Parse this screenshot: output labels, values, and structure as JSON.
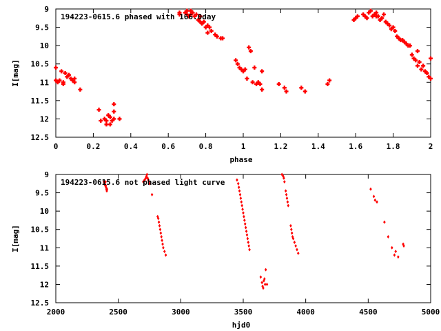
{
  "chart_data": [
    {
      "type": "scatter",
      "title": "194223-0615.6 phased with 166.0day",
      "xlabel": "phase",
      "ylabel": "I[mag]",
      "xlim": [
        0,
        2
      ],
      "ylim": [
        12.5,
        9
      ],
      "y_inverted": true,
      "grid": false,
      "x_ticks": [
        "0",
        "0.2",
        "0.4",
        "0.6",
        "0.8",
        "1",
        "1.2",
        "1.4",
        "1.6",
        "1.8",
        "2"
      ],
      "y_ticks": [
        "9",
        "9.5",
        "10",
        "10.5",
        "11",
        "11.5",
        "12",
        "12.5"
      ],
      "marker_color": "#ff0000",
      "series": [
        {
          "points": [
            [
              0.0,
              10.6
            ],
            [
              0.0,
              10.95
            ],
            [
              0.01,
              11.0
            ],
            [
              0.02,
              10.95
            ],
            [
              0.03,
              10.7
            ],
            [
              0.04,
              11.0
            ],
            [
              0.04,
              11.05
            ],
            [
              0.05,
              10.75
            ],
            [
              0.06,
              10.85
            ],
            [
              0.07,
              10.8
            ],
            [
              0.08,
              10.9
            ],
            [
              0.09,
              10.95
            ],
            [
              0.1,
              11.0
            ],
            [
              0.1,
              10.9
            ],
            [
              0.13,
              11.2
            ],
            [
              0.23,
              11.75
            ],
            [
              0.24,
              12.05
            ],
            [
              0.26,
              12.0
            ],
            [
              0.27,
              12.05
            ],
            [
              0.27,
              12.15
            ],
            [
              0.28,
              11.9
            ],
            [
              0.29,
              12.15
            ],
            [
              0.29,
              11.95
            ],
            [
              0.3,
              12.05
            ],
            [
              0.31,
              12.0
            ],
            [
              0.31,
              11.6
            ],
            [
              0.31,
              11.8
            ],
            [
              0.34,
              12.0
            ],
            [
              0.66,
              9.1
            ],
            [
              0.66,
              9.15
            ],
            [
              0.69,
              9.1
            ],
            [
              0.7,
              9.05
            ],
            [
              0.7,
              9.15
            ],
            [
              0.71,
              9.2
            ],
            [
              0.72,
              9.05
            ],
            [
              0.72,
              9.15
            ],
            [
              0.73,
              9.1
            ],
            [
              0.74,
              9.2
            ],
            [
              0.75,
              9.15
            ],
            [
              0.76,
              9.3
            ],
            [
              0.77,
              9.2
            ],
            [
              0.77,
              9.35
            ],
            [
              0.78,
              9.4
            ],
            [
              0.79,
              9.35
            ],
            [
              0.8,
              9.5
            ],
            [
              0.81,
              9.45
            ],
            [
              0.82,
              9.5
            ],
            [
              0.81,
              9.65
            ],
            [
              0.83,
              9.6
            ],
            [
              0.85,
              9.7
            ],
            [
              0.86,
              9.75
            ],
            [
              0.88,
              9.8
            ],
            [
              0.89,
              9.8
            ],
            [
              0.96,
              10.4
            ],
            [
              0.97,
              10.5
            ],
            [
              0.98,
              10.6
            ],
            [
              0.99,
              10.65
            ],
            [
              1.0,
              10.7
            ],
            [
              1.01,
              10.65
            ],
            [
              1.02,
              10.9
            ],
            [
              1.03,
              10.05
            ],
            [
              1.04,
              10.15
            ],
            [
              1.05,
              11.0
            ],
            [
              1.06,
              10.6
            ],
            [
              1.07,
              11.05
            ],
            [
              1.08,
              11.0
            ],
            [
              1.09,
              11.05
            ],
            [
              1.1,
              11.2
            ],
            [
              1.1,
              10.7
            ],
            [
              1.19,
              11.05
            ],
            [
              1.22,
              11.15
            ],
            [
              1.23,
              11.25
            ],
            [
              1.31,
              11.15
            ],
            [
              1.33,
              11.25
            ],
            [
              1.45,
              11.05
            ],
            [
              1.46,
              10.95
            ],
            [
              1.59,
              9.3
            ],
            [
              1.6,
              9.25
            ],
            [
              1.61,
              9.2
            ],
            [
              1.64,
              9.15
            ],
            [
              1.65,
              9.2
            ],
            [
              1.66,
              9.25
            ],
            [
              1.67,
              9.1
            ],
            [
              1.68,
              9.05
            ],
            [
              1.69,
              9.2
            ],
            [
              1.7,
              9.15
            ],
            [
              1.71,
              9.2
            ],
            [
              1.71,
              9.1
            ],
            [
              1.72,
              9.2
            ],
            [
              1.73,
              9.3
            ],
            [
              1.74,
              9.25
            ],
            [
              1.75,
              9.15
            ],
            [
              1.76,
              9.35
            ],
            [
              1.77,
              9.4
            ],
            [
              1.78,
              9.45
            ],
            [
              1.79,
              9.55
            ],
            [
              1.8,
              9.5
            ],
            [
              1.81,
              9.6
            ],
            [
              1.82,
              9.75
            ],
            [
              1.83,
              9.8
            ],
            [
              1.84,
              9.85
            ],
            [
              1.85,
              9.85
            ],
            [
              1.86,
              9.9
            ],
            [
              1.87,
              9.95
            ],
            [
              1.88,
              10.0
            ],
            [
              1.89,
              10.0
            ],
            [
              1.9,
              10.25
            ],
            [
              1.91,
              10.35
            ],
            [
              1.92,
              10.4
            ],
            [
              1.93,
              10.55
            ],
            [
              1.93,
              10.15
            ],
            [
              1.94,
              10.45
            ],
            [
              1.95,
              10.65
            ],
            [
              1.96,
              10.55
            ],
            [
              1.97,
              10.7
            ],
            [
              1.98,
              10.75
            ],
            [
              1.99,
              10.85
            ],
            [
              2.0,
              10.9
            ],
            [
              2.0,
              10.35
            ]
          ]
        }
      ]
    },
    {
      "type": "scatter",
      "title": "194223-0615.6 not phased light curve",
      "xlabel": "hjd0",
      "ylabel": "I[mag]",
      "xlim": [
        2000,
        5000
      ],
      "ylim": [
        12.5,
        9
      ],
      "y_inverted": true,
      "grid": false,
      "x_ticks": [
        "2000",
        "2500",
        "3000",
        "3500",
        "4000",
        "4500",
        "5000"
      ],
      "y_ticks": [
        "9",
        "9.5",
        "10",
        "10.5",
        "11",
        "11.5",
        "12",
        "12.5"
      ],
      "marker_color": "#ff0000",
      "series": [
        {
          "points": [
            [
              2385,
              9.2
            ],
            [
              2390,
              9.25
            ],
            [
              2395,
              9.3
            ],
            [
              2398,
              9.2
            ],
            [
              2400,
              9.3
            ],
            [
              2402,
              9.35
            ],
            [
              2405,
              9.4
            ],
            [
              2408,
              9.45
            ],
            [
              2410,
              9.4
            ],
            [
              2700,
              9.2
            ],
            [
              2710,
              9.15
            ],
            [
              2720,
              9.1
            ],
            [
              2725,
              9.05
            ],
            [
              2730,
              9.0
            ],
            [
              2735,
              9.1
            ],
            [
              2740,
              9.15
            ],
            [
              2745,
              9.2
            ],
            [
              2750,
              9.25
            ],
            [
              2770,
              9.55
            ],
            [
              2815,
              10.15
            ],
            [
              2820,
              10.2
            ],
            [
              2825,
              10.3
            ],
            [
              2830,
              10.4
            ],
            [
              2835,
              10.5
            ],
            [
              2840,
              10.6
            ],
            [
              2845,
              10.7
            ],
            [
              2850,
              10.8
            ],
            [
              2855,
              10.9
            ],
            [
              2860,
              11.0
            ],
            [
              2870,
              11.1
            ],
            [
              2880,
              11.2
            ],
            [
              3450,
              9.15
            ],
            [
              3460,
              9.25
            ],
            [
              3465,
              9.35
            ],
            [
              3470,
              9.45
            ],
            [
              3475,
              9.55
            ],
            [
              3480,
              9.65
            ],
            [
              3485,
              9.75
            ],
            [
              3490,
              9.85
            ],
            [
              3495,
              9.95
            ],
            [
              3500,
              10.05
            ],
            [
              3505,
              10.15
            ],
            [
              3510,
              10.25
            ],
            [
              3515,
              10.35
            ],
            [
              3520,
              10.45
            ],
            [
              3525,
              10.55
            ],
            [
              3530,
              10.65
            ],
            [
              3535,
              10.75
            ],
            [
              3540,
              10.85
            ],
            [
              3545,
              10.95
            ],
            [
              3550,
              11.05
            ],
            [
              3640,
              11.8
            ],
            [
              3650,
              11.95
            ],
            [
              3655,
              12.05
            ],
            [
              3660,
              12.1
            ],
            [
              3665,
              11.9
            ],
            [
              3670,
              11.85
            ],
            [
              3675,
              12.0
            ],
            [
              3680,
              11.6
            ],
            [
              3690,
              12.0
            ],
            [
              3810,
              9.0
            ],
            [
              3820,
              9.05
            ],
            [
              3825,
              9.1
            ],
            [
              3830,
              9.2
            ],
            [
              3840,
              9.45
            ],
            [
              3845,
              9.55
            ],
            [
              3850,
              9.65
            ],
            [
              3855,
              9.75
            ],
            [
              3860,
              9.85
            ],
            [
              3880,
              10.4
            ],
            [
              3885,
              10.5
            ],
            [
              3890,
              10.6
            ],
            [
              3895,
              10.7
            ],
            [
              3900,
              10.75
            ],
            [
              3910,
              10.85
            ],
            [
              3920,
              10.95
            ],
            [
              3930,
              11.05
            ],
            [
              3940,
              11.15
            ],
            [
              4520,
              9.4
            ],
            [
              4545,
              9.6
            ],
            [
              4555,
              9.7
            ],
            [
              4570,
              9.75
            ],
            [
              4630,
              10.3
            ],
            [
              4660,
              10.7
            ],
            [
              4690,
              11.0
            ],
            [
              4710,
              11.2
            ],
            [
              4720,
              11.1
            ],
            [
              4740,
              11.25
            ],
            [
              4780,
              10.9
            ],
            [
              4785,
              10.95
            ]
          ]
        }
      ]
    }
  ]
}
